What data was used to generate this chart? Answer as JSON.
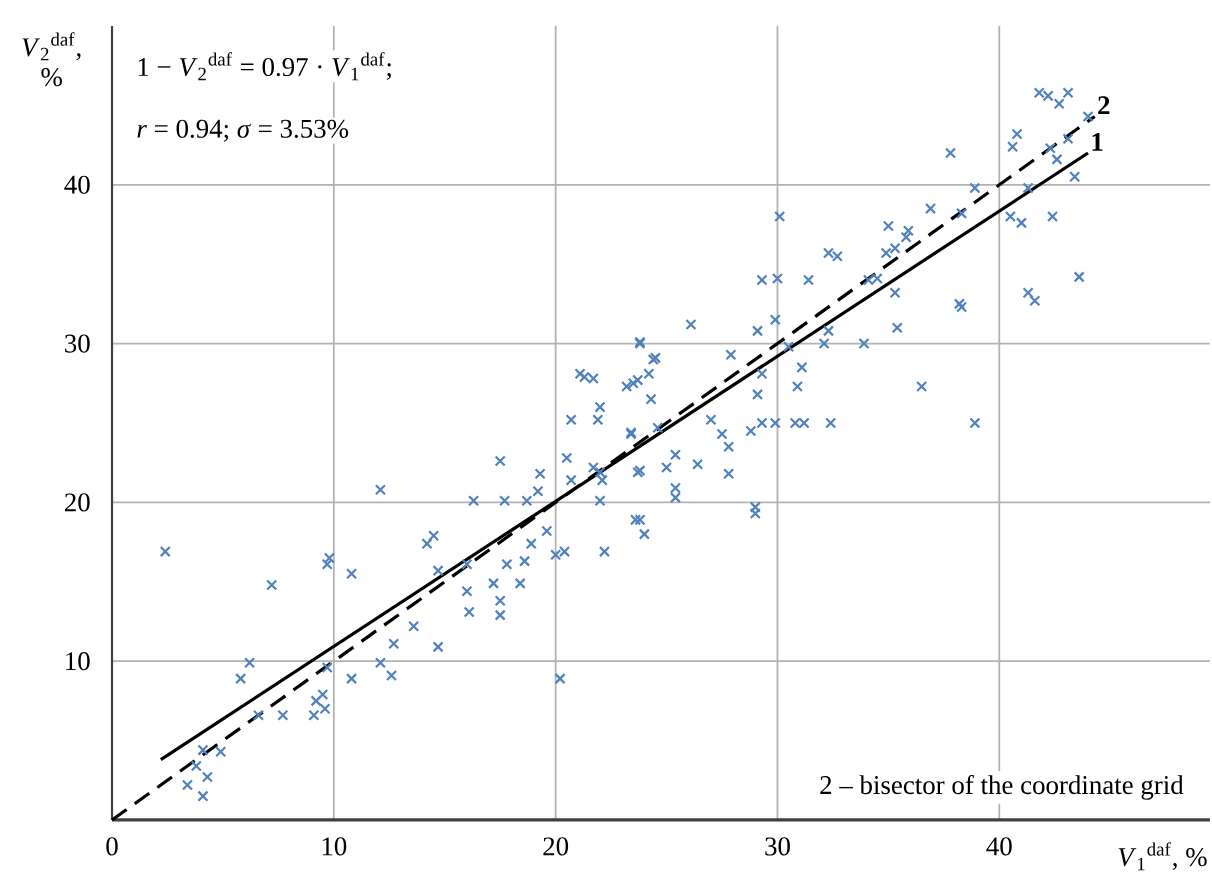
{
  "chart_data": {
    "type": "scatter",
    "xlabel": "*V*$_{1}$$^{daf}$, %",
    "ylabel": "*V*$_{2}$$^{daf}$, %",
    "xlim": [
      0,
      49.5
    ],
    "ylim": [
      0,
      50
    ],
    "xticks": [
      0,
      10,
      20,
      30,
      40
    ],
    "yticks": [
      10,
      20,
      30,
      40
    ],
    "grid": true,
    "annotations": [
      "1 − *V*$_{2}$$^{daf}$ = 0.97 · *V*$_{1}$$^{daf}$;",
      "*r* = 0.94;   *σ* = 3.53%",
      "2 – bisector of the coordinate grid",
      {
        "text": "1",
        "x": 44,
        "y": 42
      },
      {
        "text": "2",
        "x": 44.3,
        "y": 44.3
      }
    ],
    "series": [
      {
        "marker": "cross",
        "color": "#4f81bd",
        "x": [
          2.4,
          7.2,
          9.7,
          9.8,
          10.8,
          12.1,
          5.8,
          6.2,
          6.6,
          7.7,
          9.2,
          9.5,
          9.1,
          9.6,
          9.7,
          10.8,
          12.1,
          12.6,
          12.7,
          13.6,
          14.7,
          4.1,
          4.9,
          3.4,
          4.1,
          4.3,
          3.8,
          20.2,
          14.2,
          14.5,
          14.7,
          16.0,
          16.0,
          16.1,
          16.3,
          17.5,
          17.7,
          17.2,
          17.5,
          17.5,
          17.8,
          18.4,
          18.6,
          18.9,
          18.7,
          19.2,
          19.3,
          19.6,
          20.0,
          20.4,
          20.5,
          20.7,
          20.7,
          21.1,
          21.7,
          21.9,
          22.0,
          21.7,
          22.1,
          22.0,
          22.2,
          23.6,
          24.0,
          23.8,
          23.4,
          23.8,
          24.2,
          24.5,
          23.5,
          24.3,
          25.0,
          25.4,
          22.0,
          21.3,
          23.2,
          23.8,
          24.4,
          23.7,
          24.6,
          23.4,
          23.7,
          25.4,
          25.4,
          23.8,
          26.4,
          27.8,
          27.8,
          27.0,
          27.9,
          29.0,
          29.0,
          27.5,
          28.8,
          29.3,
          29.9,
          30.8,
          31.2,
          32.4,
          29.1,
          29.3,
          29.1,
          29.9,
          30.5,
          30.9,
          31.1,
          32.1,
          32.3,
          33.9,
          35.4,
          36.5,
          38.9,
          38.3,
          41.6,
          37.8,
          30.1,
          32.3,
          34.9,
          35.3,
          36.9,
          35.9,
          38.9,
          38.3,
          38.2,
          30.0,
          31.4,
          34.5,
          35.3,
          40.6,
          40.8,
          40.5,
          41.0,
          41.3,
          41.8,
          42.2,
          43.1,
          42.7,
          42.3,
          43.1,
          42.4,
          43.4,
          43.6,
          44.0,
          41.3,
          42.6,
          26.1,
          29.3,
          32.7,
          35.8,
          34.1,
          35.0
        ],
        "values": [
          16.9,
          14.8,
          16.1,
          16.5,
          15.5,
          20.8,
          8.9,
          9.9,
          6.6,
          6.6,
          7.5,
          7.9,
          6.6,
          7.0,
          9.6,
          8.9,
          9.9,
          9.1,
          11.1,
          12.2,
          10.9,
          4.4,
          4.3,
          2.2,
          1.5,
          2.7,
          3.4,
          8.9,
          17.4,
          17.9,
          15.7,
          16.1,
          14.4,
          13.1,
          20.1,
          22.6,
          20.1,
          14.9,
          13.8,
          12.9,
          16.1,
          14.9,
          16.3,
          17.4,
          20.1,
          20.7,
          21.8,
          18.2,
          16.7,
          16.9,
          22.8,
          21.4,
          25.2,
          28.1,
          27.8,
          25.2,
          26.0,
          22.2,
          21.4,
          20.1,
          16.9,
          18.9,
          18.0,
          22.0,
          24.4,
          30.0,
          28.1,
          29.1,
          27.5,
          26.5,
          22.2,
          20.3,
          21.9,
          27.9,
          27.3,
          30.1,
          29.0,
          27.7,
          24.7,
          24.3,
          21.9,
          23.0,
          20.9,
          18.9,
          22.4,
          21.8,
          23.5,
          25.2,
          29.3,
          19.7,
          19.3,
          24.3,
          24.5,
          25.0,
          25.0,
          25.0,
          25.0,
          25.0,
          26.8,
          28.1,
          30.8,
          31.5,
          29.8,
          27.3,
          28.5,
          30.0,
          30.8,
          30.0,
          31.0,
          27.3,
          25.0,
          32.3,
          32.7,
          42.0,
          38.0,
          35.7,
          35.7,
          36.0,
          38.5,
          37.1,
          39.8,
          38.2,
          32.5,
          34.1,
          34.0,
          34.1,
          33.2,
          42.4,
          43.2,
          38.0,
          37.6,
          33.2,
          45.8,
          45.6,
          45.8,
          45.1,
          42.3,
          42.9,
          38.0,
          40.5,
          34.2,
          44.3,
          39.8,
          41.6,
          31.2,
          34.0,
          35.5,
          36.7,
          34.0,
          37.4
        ]
      },
      {
        "type": "line",
        "marker": "none",
        "line_style": "solid",
        "color": "#000000",
        "x": [
          2.2,
          44
        ],
        "values": [
          3.8,
          42
        ]
      },
      {
        "type": "line",
        "marker": "none",
        "line_style": "dashed",
        "color": "#000000",
        "x": [
          0,
          44.3
        ],
        "values": [
          0,
          44.3
        ]
      }
    ]
  }
}
